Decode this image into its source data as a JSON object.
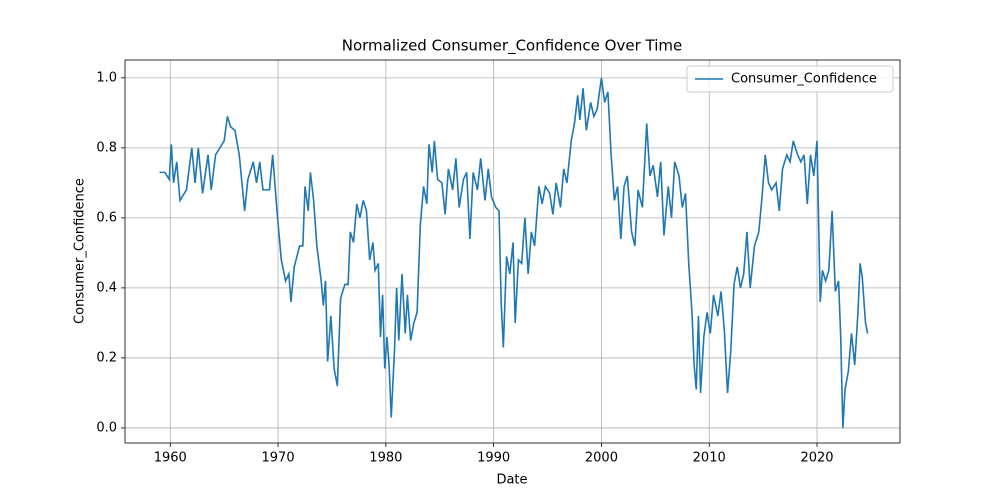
{
  "chart_data": {
    "type": "line",
    "title": "Normalized Consumer_Confidence Over Time",
    "xlabel": "Date",
    "ylabel": "Consumer_Confidence",
    "xlim": [
      1955.8,
      2027.7
    ],
    "ylim": [
      -0.043,
      1.051
    ],
    "xticks": [
      1960,
      1970,
      1980,
      1990,
      2000,
      2010,
      2020
    ],
    "yticks": [
      {
        "value": 0,
        "label": "0.0"
      },
      0.2,
      0.4,
      0.6,
      0.8,
      {
        "value": 1,
        "label": "1.0"
      }
    ],
    "grid": true,
    "legend": "upper right",
    "x": [
      1959.0,
      1959.5,
      1959.9,
      1960.1,
      1960.3,
      1960.6,
      1960.9,
      1961.5,
      1962.0,
      1962.3,
      1962.6,
      1963.0,
      1963.5,
      1963.8,
      1964.2,
      1964.6,
      1965.0,
      1965.3,
      1965.6,
      1966.0,
      1966.4,
      1966.9,
      1967.2,
      1967.7,
      1968.0,
      1968.3,
      1968.6,
      1969.2,
      1969.5,
      1969.9,
      1970.3,
      1970.7,
      1971.0,
      1971.2,
      1971.5,
      1972.0,
      1972.3,
      1972.5,
      1972.8,
      1973.0,
      1973.3,
      1973.6,
      1974.0,
      1974.2,
      1974.4,
      1974.6,
      1974.9,
      1975.2,
      1975.5,
      1975.8,
      1976.2,
      1976.5,
      1976.7,
      1977.0,
      1977.3,
      1977.6,
      1977.9,
      1978.2,
      1978.5,
      1978.8,
      1979.0,
      1979.3,
      1979.5,
      1979.7,
      1979.9,
      1980.1,
      1980.3,
      1980.5,
      1980.8,
      1981.0,
      1981.2,
      1981.5,
      1981.8,
      1982.0,
      1982.3,
      1982.6,
      1982.9,
      1983.2,
      1983.5,
      1983.8,
      1984.0,
      1984.3,
      1984.5,
      1984.8,
      1985.2,
      1985.5,
      1985.8,
      1986.2,
      1986.5,
      1986.8,
      1987.2,
      1987.5,
      1987.8,
      1988.1,
      1988.5,
      1988.8,
      1989.2,
      1989.5,
      1989.8,
      1990.2,
      1990.5,
      1990.7,
      1990.9,
      1991.2,
      1991.5,
      1991.8,
      1992.0,
      1992.3,
      1992.6,
      1992.9,
      1993.2,
      1993.5,
      1993.8,
      1994.2,
      1994.5,
      1994.8,
      1995.2,
      1995.5,
      1995.8,
      1996.2,
      1996.5,
      1996.8,
      1997.2,
      1997.5,
      1997.8,
      1998.0,
      1998.3,
      1998.6,
      1999.0,
      1999.3,
      1999.6,
      2000.0,
      2000.3,
      2000.6,
      2000.9,
      2001.2,
      2001.5,
      2001.8,
      2002.1,
      2002.4,
      2002.8,
      2003.1,
      2003.4,
      2003.8,
      2004.2,
      2004.5,
      2004.8,
      2005.2,
      2005.5,
      2005.8,
      2006.2,
      2006.5,
      2006.8,
      2007.2,
      2007.5,
      2007.8,
      2008.1,
      2008.4,
      2008.6,
      2008.8,
      2009.0,
      2009.2,
      2009.5,
      2009.8,
      2010.1,
      2010.4,
      2010.8,
      2011.1,
      2011.4,
      2011.7,
      2012.0,
      2012.3,
      2012.6,
      2012.9,
      2013.2,
      2013.5,
      2013.8,
      2014.2,
      2014.6,
      2014.9,
      2015.2,
      2015.5,
      2015.8,
      2016.2,
      2016.5,
      2016.8,
      2017.2,
      2017.5,
      2017.8,
      2018.2,
      2018.5,
      2018.8,
      2019.1,
      2019.4,
      2019.7,
      2020.0,
      2020.3,
      2020.5,
      2020.8,
      2021.1,
      2021.4,
      2021.7,
      2022.0,
      2022.2,
      2022.4,
      2022.6,
      2022.9,
      2023.2,
      2023.5,
      2023.8,
      2024.0,
      2024.2,
      2024.5,
      2024.7
    ],
    "series": [
      {
        "name": "Consumer_Confidence",
        "color": "#1f77b4",
        "values": [
          0.73,
          0.73,
          0.71,
          0.81,
          0.7,
          0.76,
          0.65,
          0.68,
          0.8,
          0.7,
          0.8,
          0.67,
          0.78,
          0.68,
          0.78,
          0.8,
          0.82,
          0.89,
          0.86,
          0.85,
          0.78,
          0.62,
          0.71,
          0.76,
          0.7,
          0.76,
          0.68,
          0.68,
          0.78,
          0.62,
          0.48,
          0.42,
          0.44,
          0.36,
          0.46,
          0.52,
          0.52,
          0.69,
          0.62,
          0.73,
          0.65,
          0.52,
          0.42,
          0.35,
          0.42,
          0.19,
          0.32,
          0.17,
          0.12,
          0.37,
          0.41,
          0.41,
          0.56,
          0.53,
          0.64,
          0.6,
          0.65,
          0.62,
          0.48,
          0.53,
          0.45,
          0.47,
          0.26,
          0.38,
          0.17,
          0.26,
          0.18,
          0.03,
          0.22,
          0.4,
          0.25,
          0.44,
          0.27,
          0.38,
          0.25,
          0.3,
          0.33,
          0.58,
          0.69,
          0.64,
          0.81,
          0.73,
          0.82,
          0.71,
          0.7,
          0.61,
          0.74,
          0.68,
          0.77,
          0.63,
          0.71,
          0.73,
          0.54,
          0.73,
          0.68,
          0.77,
          0.65,
          0.74,
          0.66,
          0.63,
          0.62,
          0.36,
          0.23,
          0.49,
          0.44,
          0.53,
          0.3,
          0.48,
          0.47,
          0.6,
          0.44,
          0.56,
          0.52,
          0.69,
          0.64,
          0.69,
          0.67,
          0.61,
          0.7,
          0.63,
          0.74,
          0.7,
          0.82,
          0.87,
          0.95,
          0.88,
          0.97,
          0.85,
          0.93,
          0.89,
          0.91,
          1.0,
          0.93,
          0.96,
          0.78,
          0.65,
          0.69,
          0.54,
          0.69,
          0.72,
          0.56,
          0.52,
          0.68,
          0.63,
          0.87,
          0.72,
          0.75,
          0.66,
          0.76,
          0.55,
          0.69,
          0.6,
          0.76,
          0.72,
          0.63,
          0.67,
          0.47,
          0.33,
          0.18,
          0.11,
          0.32,
          0.1,
          0.26,
          0.33,
          0.27,
          0.38,
          0.32,
          0.39,
          0.28,
          0.1,
          0.22,
          0.41,
          0.46,
          0.4,
          0.44,
          0.56,
          0.4,
          0.52,
          0.56,
          0.66,
          0.78,
          0.7,
          0.68,
          0.7,
          0.62,
          0.74,
          0.78,
          0.76,
          0.82,
          0.78,
          0.76,
          0.78,
          0.64,
          0.78,
          0.72,
          0.82,
          0.36,
          0.45,
          0.42,
          0.45,
          0.62,
          0.39,
          0.42,
          0.26,
          0.0,
          0.11,
          0.16,
          0.27,
          0.18,
          0.33,
          0.47,
          0.43,
          0.3,
          0.27
        ]
      }
    ]
  }
}
